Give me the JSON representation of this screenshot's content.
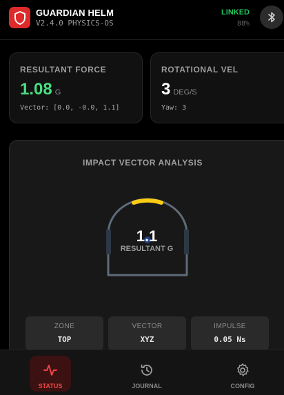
{
  "app": {
    "title": "GUARDIAN HELM",
    "version": "V2.4.0 PHYSICS-OS",
    "link_status": "LINKED",
    "battery": "88%",
    "accent_color": "#dd2a2a",
    "linked_color": "#22c55e"
  },
  "cards": {
    "force": {
      "label": "RESULTANT FORCE",
      "value": "1.08",
      "unit": "G",
      "sub": "Vector: [0.0, -0.0, 1.1]",
      "value_color": "#4ade80"
    },
    "rotation": {
      "label": "ROTATIONAL VEL",
      "value": "3",
      "unit": "DEG/S",
      "sub": "Yaw: 3"
    }
  },
  "impact": {
    "title": "IMPACT VECTOR ANALYSIS",
    "g_value": "1.1",
    "g_label": "RESULTANT G",
    "highlight_color": "#facc15",
    "stats": [
      {
        "label": "ZONE",
        "value": "TOP"
      },
      {
        "label": "VECTOR",
        "value": "XYZ"
      },
      {
        "label": "IMPULSE",
        "value": "0.05 Ns"
      }
    ]
  },
  "nav": {
    "items": [
      {
        "label": "STATUS",
        "icon": "activity-icon",
        "active": true
      },
      {
        "label": "JOURNAL",
        "icon": "history-icon",
        "active": false
      },
      {
        "label": "CONFIG",
        "icon": "gear-icon",
        "active": false
      }
    ]
  }
}
